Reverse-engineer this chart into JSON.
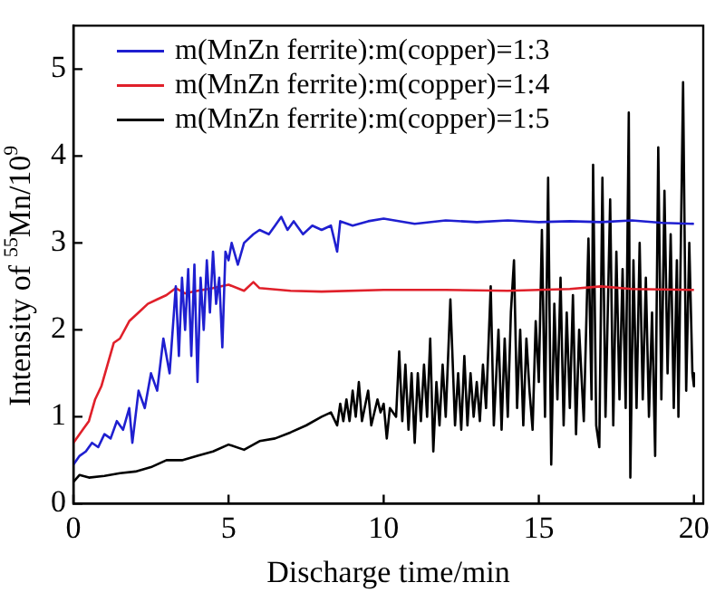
{
  "chart_data": {
    "type": "line",
    "xlabel": "Discharge time/min",
    "ylabel": "Intensity of $^{55}$Mn/10$^{9}$",
    "xlim": [
      0,
      20.3
    ],
    "ylim": [
      0,
      5.5
    ],
    "xticks": [
      0,
      5,
      10,
      15,
      20
    ],
    "yticks": [
      0,
      1,
      2,
      3,
      4,
      5
    ],
    "grid": false,
    "legend": "top left",
    "marker": "none",
    "line_style": "solid",
    "series": [
      {
        "name": "m(MnZn ferrite):m(copper)=1:3",
        "color": "#1f1fd0",
        "x": [
          0,
          0.2,
          0.4,
          0.6,
          0.8,
          1,
          1.2,
          1.4,
          1.6,
          1.8,
          1.9,
          2.1,
          2.3,
          2.5,
          2.7,
          2.9,
          3.1,
          3.3,
          3.4,
          3.5,
          3.6,
          3.7,
          3.8,
          3.9,
          4,
          4.1,
          4.2,
          4.3,
          4.4,
          4.5,
          4.6,
          4.7,
          4.8,
          4.9,
          5,
          5.1,
          5.3,
          5.5,
          5.8,
          6,
          6.3,
          6.5,
          6.7,
          6.9,
          7.1,
          7.4,
          7.7,
          8,
          8.3,
          8.5,
          8.6,
          9,
          9.5,
          10,
          11,
          12,
          13,
          14,
          15,
          16,
          17,
          18,
          19,
          20
        ],
        "values": [
          0.45,
          0.55,
          0.6,
          0.7,
          0.65,
          0.8,
          0.75,
          0.95,
          0.85,
          1.1,
          0.7,
          1.3,
          1.1,
          1.5,
          1.3,
          1.9,
          1.5,
          2.5,
          1.7,
          2.6,
          2.0,
          2.7,
          1.7,
          2.75,
          1.4,
          2.6,
          2.0,
          2.8,
          2.2,
          2.9,
          2.3,
          2.6,
          1.8,
          2.9,
          2.8,
          3.0,
          2.75,
          3.0,
          3.1,
          3.15,
          3.1,
          3.2,
          3.3,
          3.15,
          3.25,
          3.1,
          3.2,
          3.15,
          3.2,
          2.9,
          3.25,
          3.2,
          3.25,
          3.28,
          3.22,
          3.26,
          3.24,
          3.26,
          3.24,
          3.25,
          3.24,
          3.26,
          3.23,
          3.22
        ]
      },
      {
        "name": "m(MnZn ferrite):m(copper)=1:4",
        "color": "#e0202a",
        "x": [
          0,
          0.3,
          0.5,
          0.7,
          0.9,
          1.1,
          1.3,
          1.5,
          1.8,
          2.1,
          2.4,
          2.7,
          3,
          3.3,
          3.6,
          4,
          4.5,
          5,
          5.5,
          5.8,
          6,
          7,
          8,
          10,
          12,
          14,
          16,
          17,
          18,
          20
        ],
        "values": [
          0.7,
          0.85,
          0.95,
          1.2,
          1.35,
          1.6,
          1.85,
          1.9,
          2.1,
          2.2,
          2.3,
          2.35,
          2.4,
          2.48,
          2.42,
          2.45,
          2.48,
          2.52,
          2.45,
          2.55,
          2.48,
          2.45,
          2.44,
          2.46,
          2.46,
          2.45,
          2.47,
          2.5,
          2.47,
          2.46
        ]
      },
      {
        "name": "m(MnZn ferrite):m(copper)=1:5",
        "color": "#000000",
        "x": [
          0,
          0.2,
          0.5,
          1,
          1.5,
          2,
          2.5,
          3,
          3.5,
          4,
          4.5,
          5,
          5.5,
          6,
          6.5,
          7,
          7.5,
          8,
          8.3,
          8.5,
          8.6,
          8.7,
          8.8,
          8.9,
          9,
          9.1,
          9.2,
          9.3,
          9.5,
          9.6,
          9.8,
          9.9,
          10,
          10.1,
          10.2,
          10.4,
          10.5,
          10.6,
          10.7,
          10.8,
          10.9,
          11,
          11.1,
          11.2,
          11.3,
          11.4,
          11.5,
          11.6,
          11.7,
          11.8,
          11.9,
          12,
          12.15,
          12.3,
          12.4,
          12.5,
          12.6,
          12.7,
          12.8,
          12.9,
          13,
          13.1,
          13.2,
          13.3,
          13.45,
          13.55,
          13.7,
          13.8,
          13.9,
          14,
          14.1,
          14.2,
          14.3,
          14.4,
          14.5,
          14.6,
          14.7,
          14.8,
          14.9,
          15,
          15.1,
          15.2,
          15.3,
          15.4,
          15.5,
          15.6,
          15.7,
          15.8,
          15.9,
          16,
          16.1,
          16.2,
          16.3,
          16.45,
          16.6,
          16.7,
          16.75,
          16.85,
          16.95,
          17.05,
          17.15,
          17.3,
          17.4,
          17.5,
          17.6,
          17.7,
          17.8,
          17.9,
          17.95,
          18.05,
          18.15,
          18.25,
          18.35,
          18.45,
          18.55,
          18.65,
          18.75,
          18.85,
          18.95,
          19.05,
          19.15,
          19.25,
          19.35,
          19.45,
          19.5,
          19.65,
          19.75,
          19.85,
          19.95,
          20
        ],
        "values": [
          0.25,
          0.33,
          0.3,
          0.32,
          0.35,
          0.37,
          0.42,
          0.5,
          0.5,
          0.55,
          0.6,
          0.68,
          0.62,
          0.72,
          0.75,
          0.82,
          0.9,
          1.0,
          1.05,
          0.9,
          1.15,
          0.95,
          1.2,
          0.95,
          1.3,
          1.0,
          1.4,
          0.95,
          1.3,
          0.9,
          1.2,
          1.05,
          1.15,
          0.75,
          1.1,
          1.0,
          1.75,
          0.95,
          1.6,
          0.85,
          1.5,
          0.7,
          1.5,
          0.95,
          1.6,
          1.0,
          1.9,
          0.6,
          1.4,
          0.9,
          1.6,
          1.0,
          2.35,
          0.9,
          1.5,
          0.85,
          1.7,
          0.9,
          1.5,
          1.0,
          1.4,
          0.95,
          1.6,
          1.1,
          2.5,
          0.9,
          2.0,
          0.85,
          1.9,
          1.0,
          2.2,
          2.8,
          1.1,
          2.0,
          0.9,
          1.9,
          1.3,
          0.85,
          2.1,
          1.4,
          3.15,
          1.0,
          3.75,
          0.45,
          2.3,
          1.2,
          2.6,
          0.9,
          2.2,
          1.1,
          2.4,
          0.8,
          2.0,
          0.95,
          3.05,
          1.2,
          3.9,
          0.9,
          0.65,
          3.75,
          1.0,
          3.5,
          0.9,
          2.9,
          1.2,
          2.7,
          1.1,
          4.5,
          0.3,
          2.8,
          1.1,
          3.0,
          1.2,
          2.6,
          1.0,
          2.2,
          0.55,
          4.1,
          1.2,
          3.6,
          1.5,
          3.1,
          1.1,
          2.8,
          1.0,
          4.85,
          1.3,
          3.0,
          1.5,
          1.35
        ]
      }
    ]
  }
}
